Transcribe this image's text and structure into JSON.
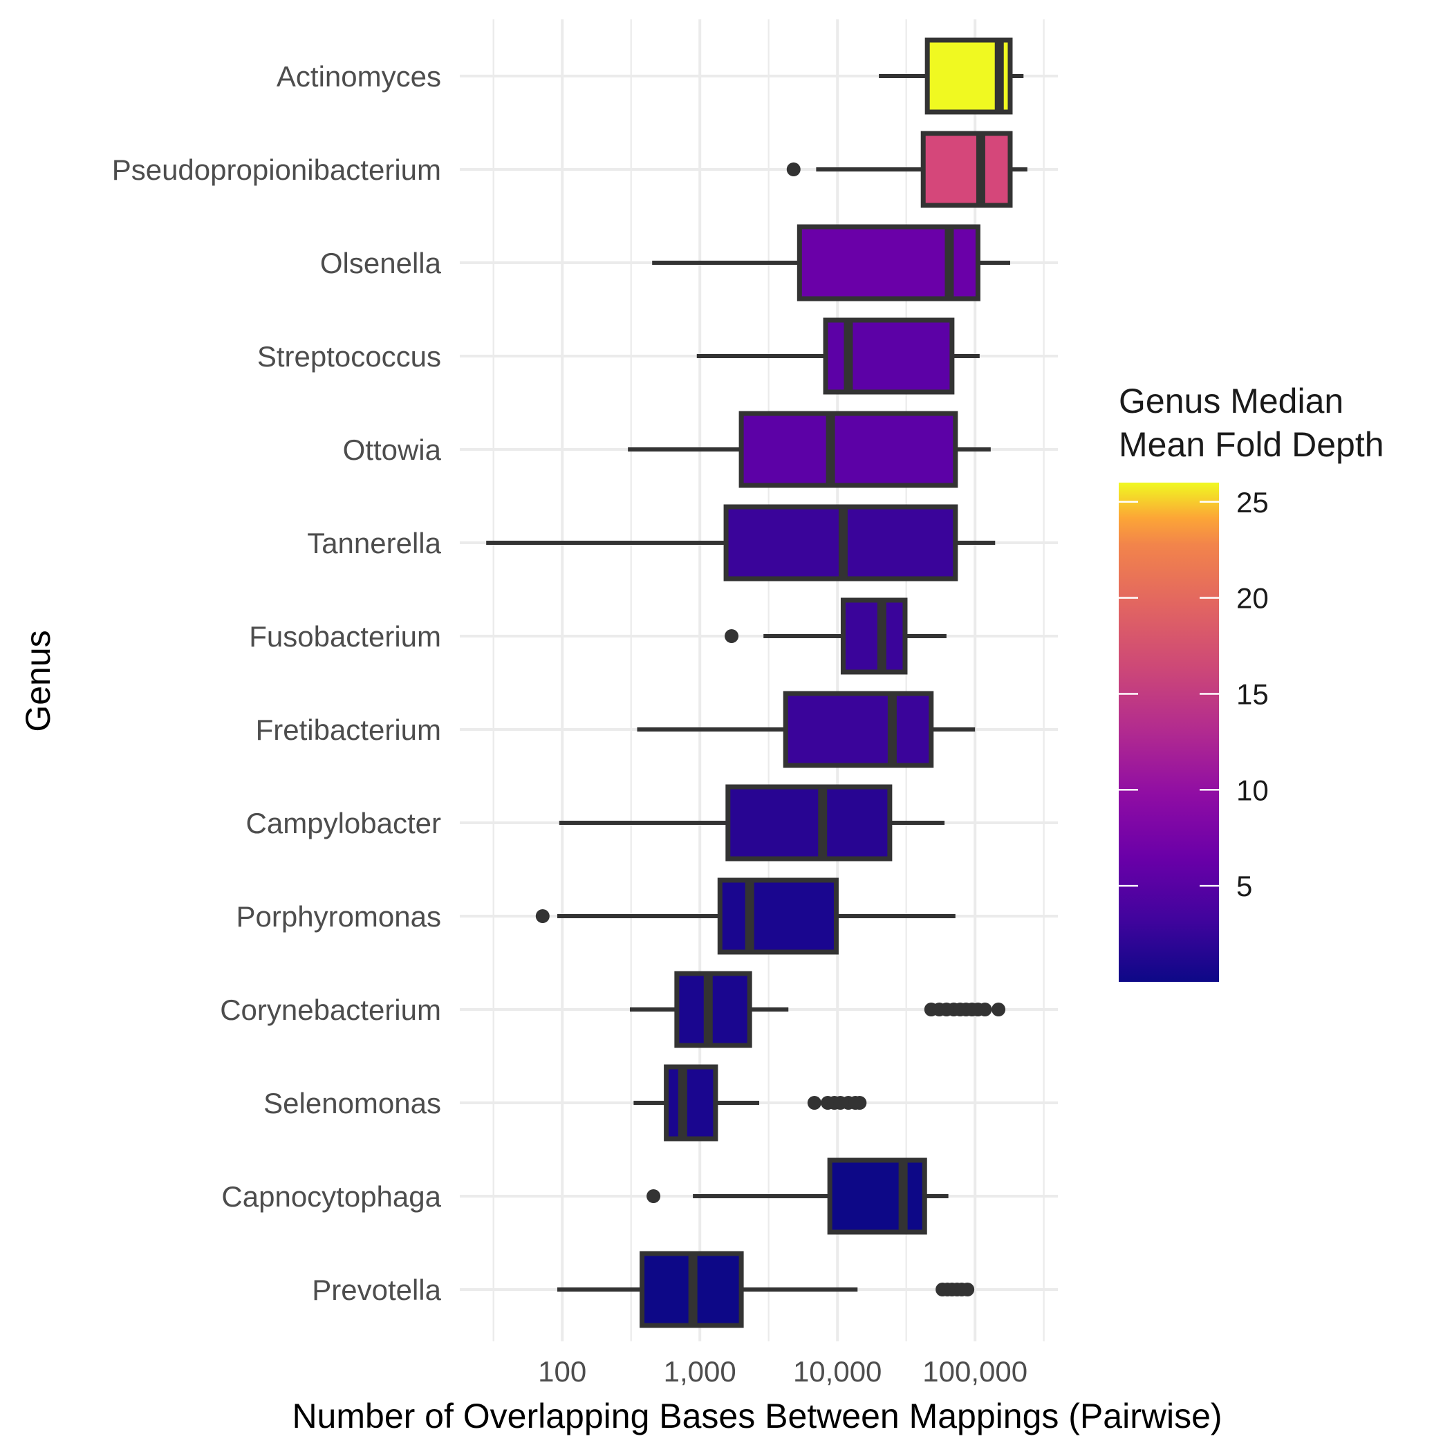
{
  "chart_data": {
    "type": "boxplot",
    "orientation": "horizontal",
    "x_scale": "log10",
    "xlabel": "Number of Overlapping Bases Between Mappings (Pairwise)",
    "ylabel": "Genus",
    "xlim": [
      18,
      400000
    ],
    "x_ticks": [
      100,
      1000,
      10000,
      100000
    ],
    "x_tick_labels": [
      "100",
      "1,000",
      "10,000",
      "100,000"
    ],
    "grid": "on",
    "legend": {
      "title_lines": [
        "Genus Median",
        "Mean Fold Depth"
      ],
      "type": "colorbar",
      "palette": "plasma",
      "range": [
        0,
        26
      ],
      "ticks": [
        5,
        10,
        15,
        20,
        25
      ],
      "tick_labels": [
        "5",
        "10",
        "15",
        "20",
        "25"
      ],
      "placement": "right"
    },
    "colors": {
      "box_outline": "#333333",
      "grid": "#ebebeb",
      "axis_text": "#4d4d4d"
    },
    "categories": [
      "Actinomyces",
      "Pseudopropionibacterium",
      "Olsenella",
      "Streptococcus",
      "Ottowia",
      "Tannerella",
      "Fusobacterium",
      "Fretibacterium",
      "Campylobacter",
      "Porphyromonas",
      "Corynebacterium",
      "Selenomonas",
      "Capnocytophaga",
      "Prevotella"
    ],
    "boxes": [
      {
        "genus": "Actinomyces",
        "whisker_low": 20000,
        "q1": 45000,
        "median": 150000,
        "q3": 180000,
        "whisker_high": 225000,
        "outliers": [],
        "fill": "#f0f921",
        "fold_depth": 25.5
      },
      {
        "genus": "Pseudopropionibacterium",
        "whisker_low": 7000,
        "q1": 42000,
        "median": 110000,
        "q3": 180000,
        "whisker_high": 240000,
        "outliers": [
          4800
        ],
        "fill": "#d5477a",
        "fold_depth": 14
      },
      {
        "genus": "Olsenella",
        "whisker_low": 450,
        "q1": 5300,
        "median": 65000,
        "q3": 105000,
        "whisker_high": 180000,
        "outliers": [],
        "fill": "#6a00a8",
        "fold_depth": 6.5
      },
      {
        "genus": "Streptococcus",
        "whisker_low": 950,
        "q1": 8200,
        "median": 12000,
        "q3": 68000,
        "whisker_high": 108000,
        "outliers": [],
        "fill": "#5c01a6",
        "fold_depth": 5.5
      },
      {
        "genus": "Ottowia",
        "whisker_low": 300,
        "q1": 2000,
        "median": 8900,
        "q3": 72000,
        "whisker_high": 130000,
        "outliers": [],
        "fill": "#5c01a6",
        "fold_depth": 5.5
      },
      {
        "genus": "Tannerella",
        "whisker_low": 28,
        "q1": 1550,
        "median": 11000,
        "q3": 72000,
        "whisker_high": 140000,
        "outliers": [],
        "fill": "#3a049a",
        "fold_depth": 3.5
      },
      {
        "genus": "Fusobacterium",
        "whisker_low": 2900,
        "q1": 11000,
        "median": 21000,
        "q3": 31000,
        "whisker_high": 62000,
        "outliers": [
          1700
        ],
        "fill": "#3a049a",
        "fold_depth": 3.5
      },
      {
        "genus": "Fretibacterium",
        "whisker_low": 350,
        "q1": 4200,
        "median": 25000,
        "q3": 48000,
        "whisker_high": 100000,
        "outliers": [],
        "fill": "#3a049a",
        "fold_depth": 3.5
      },
      {
        "genus": "Campylobacter",
        "whisker_low": 95,
        "q1": 1600,
        "median": 7800,
        "q3": 24000,
        "whisker_high": 60000,
        "outliers": [],
        "fill": "#280592",
        "fold_depth": 2.5
      },
      {
        "genus": "Porphyromonas",
        "whisker_low": 92,
        "q1": 1400,
        "median": 2300,
        "q3": 9800,
        "whisker_high": 72000,
        "outliers": [
          72
        ],
        "fill": "#1a068f",
        "fold_depth": 1.8
      },
      {
        "genus": "Corynebacterium",
        "whisker_low": 310,
        "q1": 680,
        "median": 1150,
        "q3": 2300,
        "whisker_high": 4400,
        "outliers": [
          48000,
          55000,
          62000,
          70000,
          78000,
          86000,
          95000,
          105000,
          118000,
          148000
        ],
        "fill": "#1a068f",
        "fold_depth": 1.8
      },
      {
        "genus": "Selenomonas",
        "whisker_low": 330,
        "q1": 570,
        "median": 750,
        "q3": 1300,
        "whisker_high": 2700,
        "outliers": [
          6800,
          8500,
          9500,
          10500,
          12000,
          13500,
          14500
        ],
        "fill": "#1a068f",
        "fold_depth": 1.8
      },
      {
        "genus": "Capnocytophaga",
        "whisker_low": 890,
        "q1": 8800,
        "median": 30000,
        "q3": 43000,
        "whisker_high": 64000,
        "outliers": [
          460
        ],
        "fill": "#0d0887",
        "fold_depth": 0.5
      },
      {
        "genus": "Prevotella",
        "whisker_low": 92,
        "q1": 380,
        "median": 890,
        "q3": 2000,
        "whisker_high": 14000,
        "outliers": [
          58000,
          63000,
          68000,
          74000,
          80000,
          88000
        ],
        "fill": "#0d0887",
        "fold_depth": 0.5
      }
    ]
  }
}
